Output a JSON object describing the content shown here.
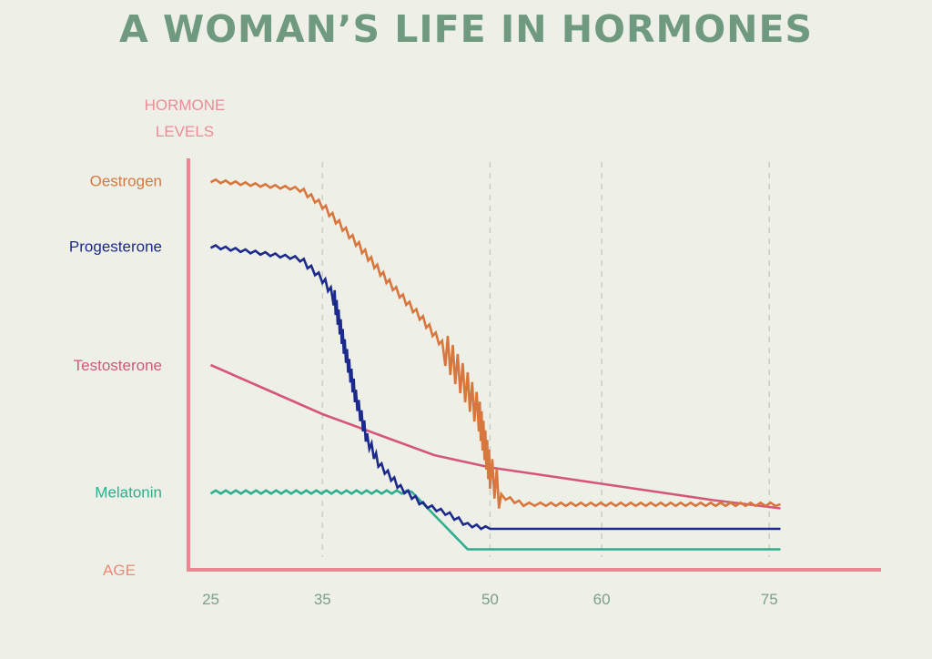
{
  "title": "A WOMAN’S LIFE IN HORMONES",
  "colors": {
    "background": "#eef0e7",
    "title": "#6f9a80",
    "axis": "#e58a93",
    "oestrogen": "#d7773d",
    "progesterone": "#1c2a8c",
    "testosterone": "#d5567a",
    "melatonin": "#2fae8f",
    "tick": "#7c9e8b",
    "axis_label": "#ea8d97",
    "age_label": "#e88b78",
    "grid": "#c9cdc4"
  },
  "chart_data": {
    "type": "line",
    "ylabel_lines": [
      "HORMONE",
      "LEVELS"
    ],
    "xlabel": "AGE",
    "xlim": [
      23,
      85
    ],
    "ylim": [
      0,
      100
    ],
    "x_ticks": [
      25,
      35,
      50,
      60,
      75
    ],
    "grid": "dashed vertical at 35, 50, 60, 75",
    "series": [
      {
        "name": "Oestrogen",
        "color": "#d7773d",
        "wavy": true,
        "points": [
          [
            25,
            95
          ],
          [
            33,
            93
          ],
          [
            35,
            89
          ],
          [
            38,
            80
          ],
          [
            41,
            70
          ],
          [
            44,
            61
          ],
          [
            46,
            54
          ],
          [
            48,
            44
          ],
          [
            49,
            38
          ],
          [
            50,
            24
          ],
          [
            51,
            18
          ],
          [
            53,
            16
          ],
          [
            55,
            16
          ],
          [
            76,
            16
          ]
        ]
      },
      {
        "name": "Progesterone",
        "color": "#1c2a8c",
        "wavy": true,
        "points": [
          [
            25,
            79
          ],
          [
            33,
            76
          ],
          [
            35,
            71
          ],
          [
            36,
            67
          ],
          [
            37,
            54
          ],
          [
            38,
            42
          ],
          [
            39,
            32
          ],
          [
            40,
            26
          ],
          [
            42,
            20
          ],
          [
            44,
            16
          ],
          [
            46,
            14
          ],
          [
            48,
            11
          ],
          [
            50,
            10
          ],
          [
            60,
            10
          ],
          [
            76,
            10
          ]
        ]
      },
      {
        "name": "Testosterone",
        "color": "#d5567a",
        "wavy": false,
        "points": [
          [
            25,
            50
          ],
          [
            30,
            44
          ],
          [
            35,
            38
          ],
          [
            40,
            33
          ],
          [
            45,
            28
          ],
          [
            50,
            25
          ],
          [
            55,
            23
          ],
          [
            60,
            21
          ],
          [
            65,
            19
          ],
          [
            70,
            17
          ],
          [
            76,
            15
          ]
        ]
      },
      {
        "name": "Melatonin",
        "color": "#2fae8f",
        "wavy": true,
        "points": [
          [
            25,
            19
          ],
          [
            43,
            19
          ],
          [
            48,
            5
          ],
          [
            76,
            5
          ]
        ]
      }
    ]
  }
}
